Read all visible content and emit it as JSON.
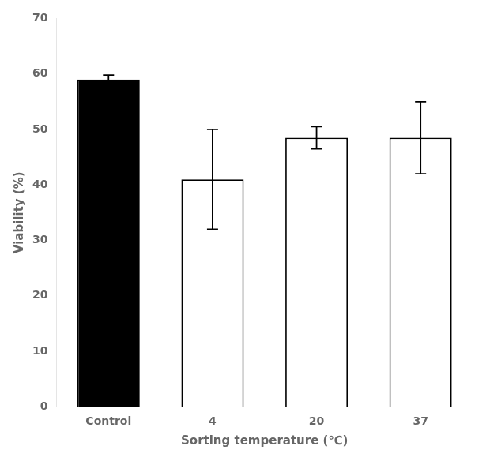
{
  "chart_data": {
    "type": "bar",
    "categories": [
      "Control",
      "4",
      "20",
      "37"
    ],
    "values": [
      59.0,
      41.0,
      48.5,
      48.5
    ],
    "errors": [
      0.8,
      9.0,
      2.0,
      6.5
    ],
    "colors": [
      "#000000",
      "#ffffff",
      "#ffffff",
      "#ffffff"
    ],
    "xlabel": "Sorting temperature (℃)",
    "ylabel": "Viability (%)",
    "ylim": [
      0,
      70
    ],
    "yticks": [
      0,
      10,
      20,
      30,
      40,
      50,
      60,
      70
    ],
    "grid": false
  }
}
